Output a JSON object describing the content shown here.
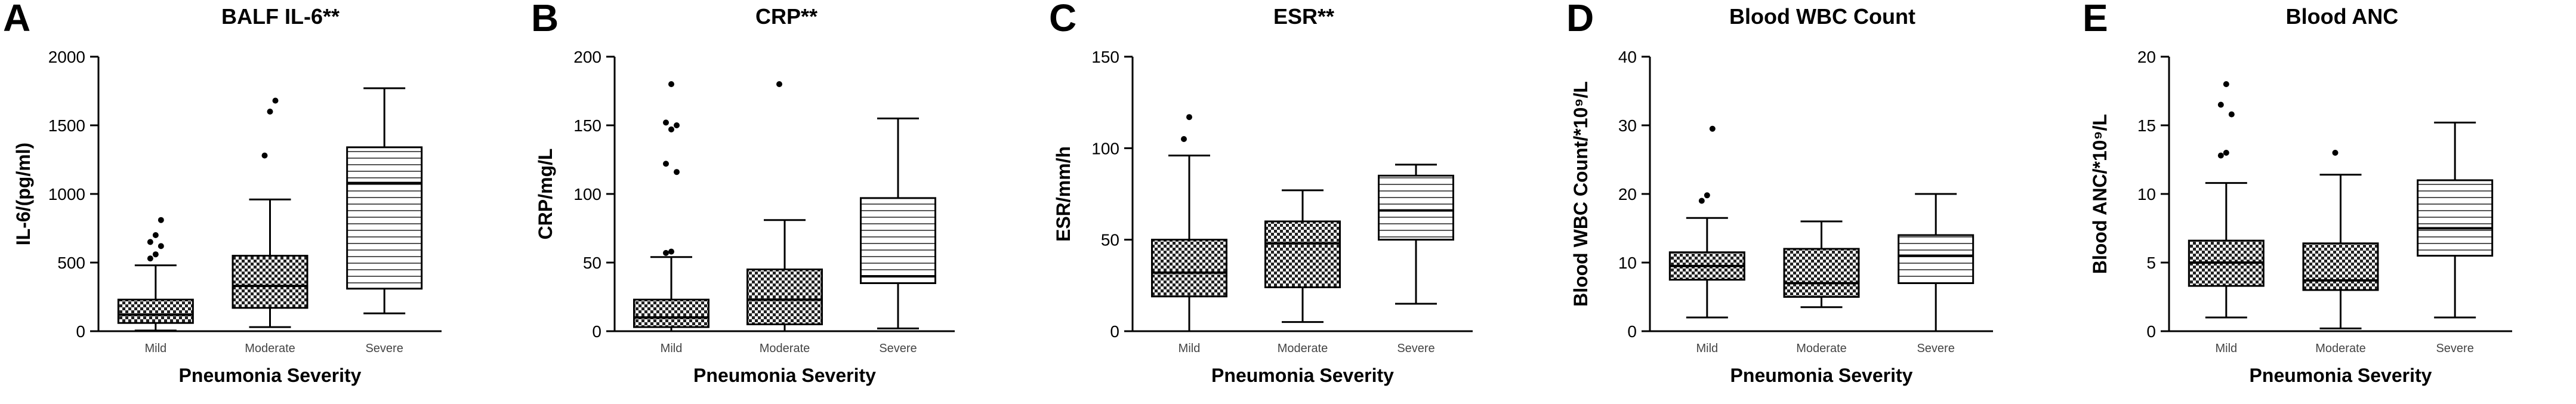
{
  "chart_data": [
    {
      "type": "box",
      "panel": "A",
      "title": "BALF IL-6**",
      "xlabel": "Pneumonia Severity",
      "ylabel": "IL-6/(pg/ml)",
      "ylim": [
        0,
        2000
      ],
      "yticks": [
        "0",
        "500",
        "1000",
        "1500",
        "2000"
      ],
      "categories": [
        "Mild",
        "Moderate",
        "Severe"
      ],
      "boxes": [
        {
          "category": "Mild",
          "pattern": "checker",
          "min": 5,
          "q1": 60,
          "median": 120,
          "q3": 230,
          "max": 480,
          "outliers": [
            530,
            560,
            620,
            650,
            700,
            810
          ]
        },
        {
          "category": "Moderate",
          "pattern": "checker",
          "min": 30,
          "q1": 170,
          "median": 330,
          "q3": 550,
          "max": 960,
          "outliers": [
            1280,
            1600,
            1680
          ]
        },
        {
          "category": "Severe",
          "pattern": "stripes",
          "min": 130,
          "q1": 310,
          "median": 1080,
          "q3": 1340,
          "max": 1770,
          "outliers": []
        }
      ]
    },
    {
      "type": "box",
      "panel": "B",
      "title": "CRP**",
      "xlabel": "Pneumonia Severity",
      "ylabel": "CRP/mg/L",
      "ylim": [
        0,
        200
      ],
      "yticks": [
        "0",
        "50",
        "100",
        "150",
        "200"
      ],
      "categories": [
        "Mild",
        "Moderate",
        "Severe"
      ],
      "boxes": [
        {
          "category": "Mild",
          "pattern": "checker",
          "min": 0,
          "q1": 3,
          "median": 10,
          "q3": 23,
          "max": 54,
          "outliers": [
            57,
            58,
            116,
            122,
            147,
            150,
            152,
            180
          ]
        },
        {
          "category": "Moderate",
          "pattern": "checker",
          "min": 0,
          "q1": 5,
          "median": 23,
          "q3": 45,
          "max": 81,
          "outliers": [
            180
          ]
        },
        {
          "category": "Severe",
          "pattern": "stripes",
          "min": 2,
          "q1": 35,
          "median": 40,
          "q3": 97,
          "max": 155,
          "outliers": []
        }
      ]
    },
    {
      "type": "box",
      "panel": "C",
      "title": "ESR**",
      "xlabel": "Pneumonia Severity",
      "ylabel": "ESR/mm/h",
      "ylim": [
        0,
        150
      ],
      "yticks": [
        "0",
        "50",
        "100",
        "150"
      ],
      "categories": [
        "Mild",
        "Moderate",
        "Severe"
      ],
      "boxes": [
        {
          "category": "Mild",
          "pattern": "checker",
          "min": 0,
          "q1": 19,
          "median": 32,
          "q3": 50,
          "max": 96,
          "outliers": [
            105,
            117
          ]
        },
        {
          "category": "Moderate",
          "pattern": "checker",
          "min": 5,
          "q1": 24,
          "median": 48,
          "q3": 60,
          "max": 77,
          "outliers": []
        },
        {
          "category": "Severe",
          "pattern": "stripes",
          "min": 15,
          "q1": 50,
          "median": 66,
          "q3": 85,
          "max": 91,
          "outliers": []
        }
      ]
    },
    {
      "type": "box",
      "panel": "D",
      "title": "Blood WBC Count",
      "xlabel": "Pneumonia Severity",
      "ylabel": "Blood WBC Count/*10⁹/L",
      "ylim": [
        0,
        40
      ],
      "yticks": [
        "0",
        "10",
        "20",
        "30",
        "40"
      ],
      "categories": [
        "Mild",
        "Moderate",
        "Severe"
      ],
      "boxes": [
        {
          "category": "Mild",
          "pattern": "checker",
          "min": 2,
          "q1": 7.5,
          "median": 9.5,
          "q3": 11.5,
          "max": 16.5,
          "outliers": [
            19,
            19.8,
            29.5
          ]
        },
        {
          "category": "Moderate",
          "pattern": "checker",
          "min": 3.5,
          "q1": 5,
          "median": 7,
          "q3": 12,
          "max": 16,
          "outliers": []
        },
        {
          "category": "Severe",
          "pattern": "stripes",
          "min": 0,
          "q1": 7,
          "median": 11,
          "q3": 14,
          "max": 20,
          "outliers": []
        }
      ]
    },
    {
      "type": "box",
      "panel": "E",
      "title": "Blood ANC",
      "xlabel": "Pneumonia Severity",
      "ylabel": "Blood ANC/*10⁹/L",
      "ylim": [
        0,
        20
      ],
      "yticks": [
        "0",
        "5",
        "10",
        "15",
        "20"
      ],
      "categories": [
        "Mild",
        "Moderate",
        "Severe"
      ],
      "boxes": [
        {
          "category": "Mild",
          "pattern": "checker",
          "min": 1,
          "q1": 3.3,
          "median": 5,
          "q3": 6.6,
          "max": 10.8,
          "outliers": [
            12.8,
            13,
            15.8,
            16.5,
            18
          ]
        },
        {
          "category": "Moderate",
          "pattern": "checker",
          "min": 0.2,
          "q1": 3,
          "median": 3.7,
          "q3": 6.4,
          "max": 11.4,
          "outliers": [
            13
          ]
        },
        {
          "category": "Severe",
          "pattern": "stripes",
          "min": 1,
          "q1": 5.5,
          "median": 7.5,
          "q3": 11,
          "max": 15.2,
          "outliers": []
        }
      ]
    }
  ]
}
